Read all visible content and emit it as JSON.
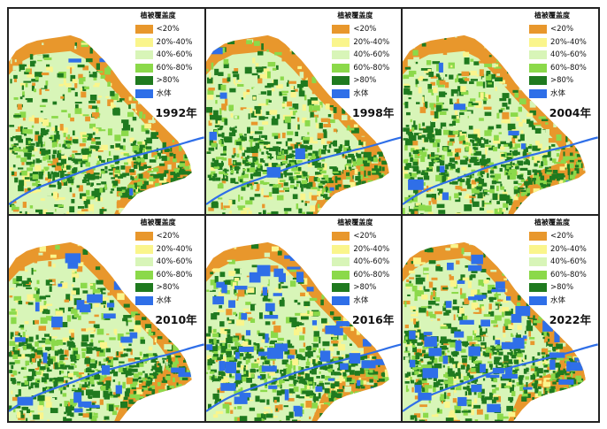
{
  "legend": {
    "title": "植被覆盖度",
    "classes": [
      {
        "label": "<20%",
        "color": "#E8972C"
      },
      {
        "label": "20%-40%",
        "color": "#FAF58C"
      },
      {
        "label": "40%-60%",
        "color": "#D8F5B8"
      },
      {
        "label": "60%-80%",
        "color": "#8BD94A"
      },
      {
        "label": ">80%",
        "color": "#1F7A1F"
      },
      {
        "label": "水体",
        "color": "#2F6FE8"
      }
    ]
  },
  "panels": [
    {
      "year": "1992年",
      "water_share": "low"
    },
    {
      "year": "1998年",
      "water_share": "low"
    },
    {
      "year": "2004年",
      "water_share": "low"
    },
    {
      "year": "2010年",
      "water_share": "medium"
    },
    {
      "year": "2016年",
      "water_share": "high"
    },
    {
      "year": "2022年",
      "water_share": "high"
    }
  ]
}
